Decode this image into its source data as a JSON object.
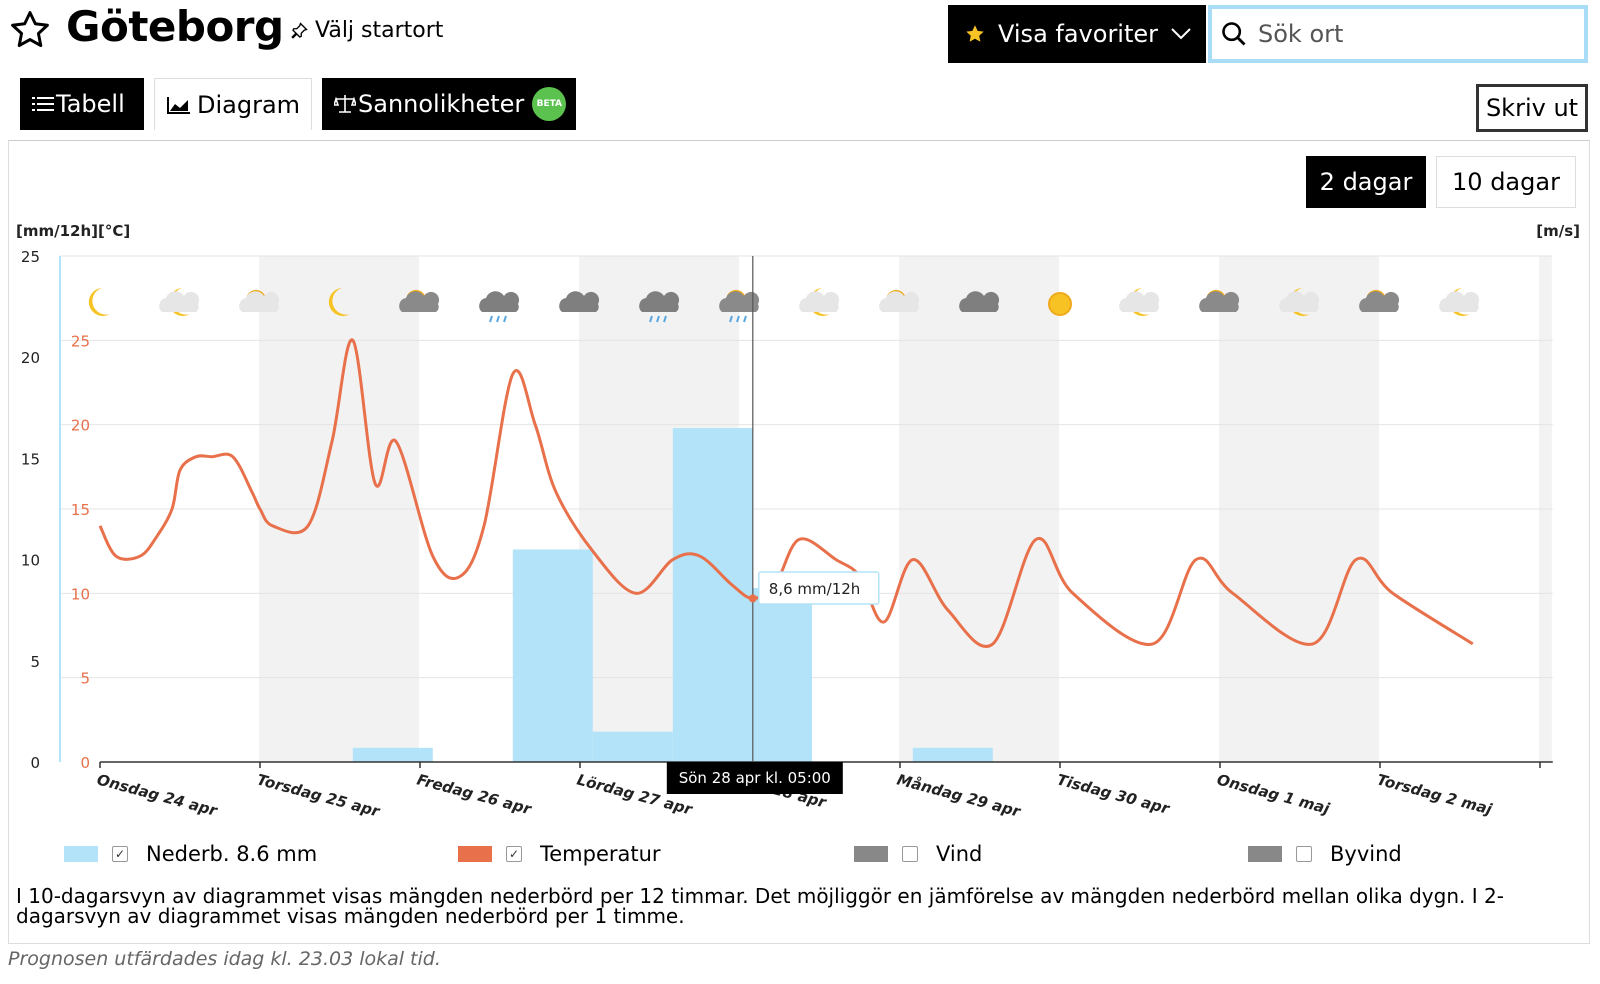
{
  "header": {
    "city": "Göteborg",
    "set_start_label": "Välj startort",
    "favorites_label": "Visa favoriter",
    "search_placeholder": "Sök ort"
  },
  "tabs": [
    {
      "label": "Tabell",
      "active": false
    },
    {
      "label": "Diagram",
      "active": true
    },
    {
      "label": "Sannolikheter",
      "badge": "BETA",
      "active": false
    }
  ],
  "print_label": "Skriv ut",
  "range": {
    "two_days": "2 dagar",
    "ten_days": "10 dagar",
    "selected": "2 dagar"
  },
  "chart_data": {
    "type": "bar+line",
    "left_axis_unit_precip": "[mm/12h]",
    "left_axis_unit_temp": "[°C]",
    "right_axis_unit": "[m/s]",
    "precip_axis": {
      "ticks": [
        0,
        5,
        10,
        15,
        20,
        25
      ],
      "ylim": [
        0,
        25
      ]
    },
    "temp_axis": {
      "ticks": [
        0,
        5,
        10,
        15,
        20,
        25
      ],
      "ylim": [
        0,
        30
      ]
    },
    "x_labels": [
      "Onsdag 24 apr",
      "Torsdag 25 apr",
      "Fredag 26 apr",
      "Lördag 27 apr",
      "Sön 28 apr",
      "Måndag 29 apr",
      "Tisdag 30 apr",
      "Onsdag 1 maj",
      "Torsdag 2 maj"
    ],
    "x_days": [
      0,
      1,
      2,
      3,
      4,
      5,
      6,
      7,
      8,
      9
    ],
    "weather_icons": [
      "moon-icon",
      "partly-cloudy-night-icon",
      "partly-sunny-icon",
      "moon-icon",
      "sun-cloudy-icon",
      "rain-cloud-icon",
      "cloud-icon",
      "rain-cloud-icon",
      "sun-rain-icon",
      "partly-cloudy-night-icon",
      "partly-sunny-icon",
      "cloud-icon",
      "sun-icon",
      "partly-cloudy-night-icon",
      "sun-cloudy-icon",
      "partly-cloudy-night-icon",
      "sun-cloudy-icon",
      "partly-cloudy-night-icon"
    ],
    "precipitation": {
      "name": "Nederb. 8.6 mm",
      "color": "#b3e3f8",
      "bars": [
        {
          "start": 1.58,
          "end": 2.08,
          "value": 0.7
        },
        {
          "start": 2.58,
          "end": 3.08,
          "value": 10.5
        },
        {
          "start": 3.08,
          "end": 3.58,
          "value": 1.5
        },
        {
          "start": 3.58,
          "end": 4.08,
          "value": 16.5
        },
        {
          "start": 4.08,
          "end": 4.45,
          "value": 8.6
        },
        {
          "start": 5.08,
          "end": 5.58,
          "value": 0.7
        }
      ]
    },
    "temperature": {
      "name": "Temperatur",
      "color": "#e8704a",
      "points": [
        [
          0,
          14
        ],
        [
          0.1,
          12.2
        ],
        [
          0.25,
          12.2
        ],
        [
          0.35,
          13.3
        ],
        [
          0.45,
          15
        ],
        [
          0.5,
          17.3
        ],
        [
          0.6,
          18.1
        ],
        [
          0.7,
          18.1
        ],
        [
          0.83,
          18.1
        ],
        [
          0.95,
          16
        ],
        [
          1.0,
          15
        ],
        [
          1.08,
          14
        ],
        [
          1.3,
          14
        ],
        [
          1.45,
          19
        ],
        [
          1.58,
          25
        ],
        [
          1.72,
          16.5
        ],
        [
          1.85,
          19
        ],
        [
          2.08,
          12.2
        ],
        [
          2.25,
          11
        ],
        [
          2.4,
          14
        ],
        [
          2.58,
          23
        ],
        [
          2.72,
          20
        ],
        [
          2.85,
          16
        ],
        [
          3.08,
          12.5
        ],
        [
          3.35,
          10
        ],
        [
          3.58,
          12
        ],
        [
          3.75,
          12.2
        ],
        [
          3.95,
          10.5
        ],
        [
          4.08,
          9.7
        ],
        [
          4.22,
          10.5
        ],
        [
          4.37,
          13.2
        ],
        [
          4.6,
          12
        ],
        [
          4.75,
          11
        ],
        [
          4.9,
          8.3
        ],
        [
          5.08,
          12
        ],
        [
          5.3,
          9
        ],
        [
          5.58,
          7
        ],
        [
          5.85,
          13.2
        ],
        [
          6.08,
          10
        ],
        [
          6.58,
          7
        ],
        [
          6.85,
          12
        ],
        [
          7.08,
          10
        ],
        [
          7.58,
          7
        ],
        [
          7.85,
          12
        ],
        [
          8.08,
          10
        ],
        [
          8.58,
          7
        ]
      ]
    },
    "wind": {
      "name": "Vind",
      "enabled": false
    },
    "gust": {
      "name": "Byvind",
      "enabled": false
    },
    "tooltip": "8,6 mm/12h",
    "crosshair_label": "Sön 28 apr kl. 05:00"
  },
  "note": "I 10-dagarsvyn av diagrammet visas mängden nederbörd per 12 timmar. Det möjliggör en jämförelse av mängden nederbörd mellan olika dygn. I 2-dagarsvyn av diagrammet visas mängden nederbörd per 1 timme.",
  "issued": "Prognosen utfärdades idag kl. 23.03 lokal tid."
}
